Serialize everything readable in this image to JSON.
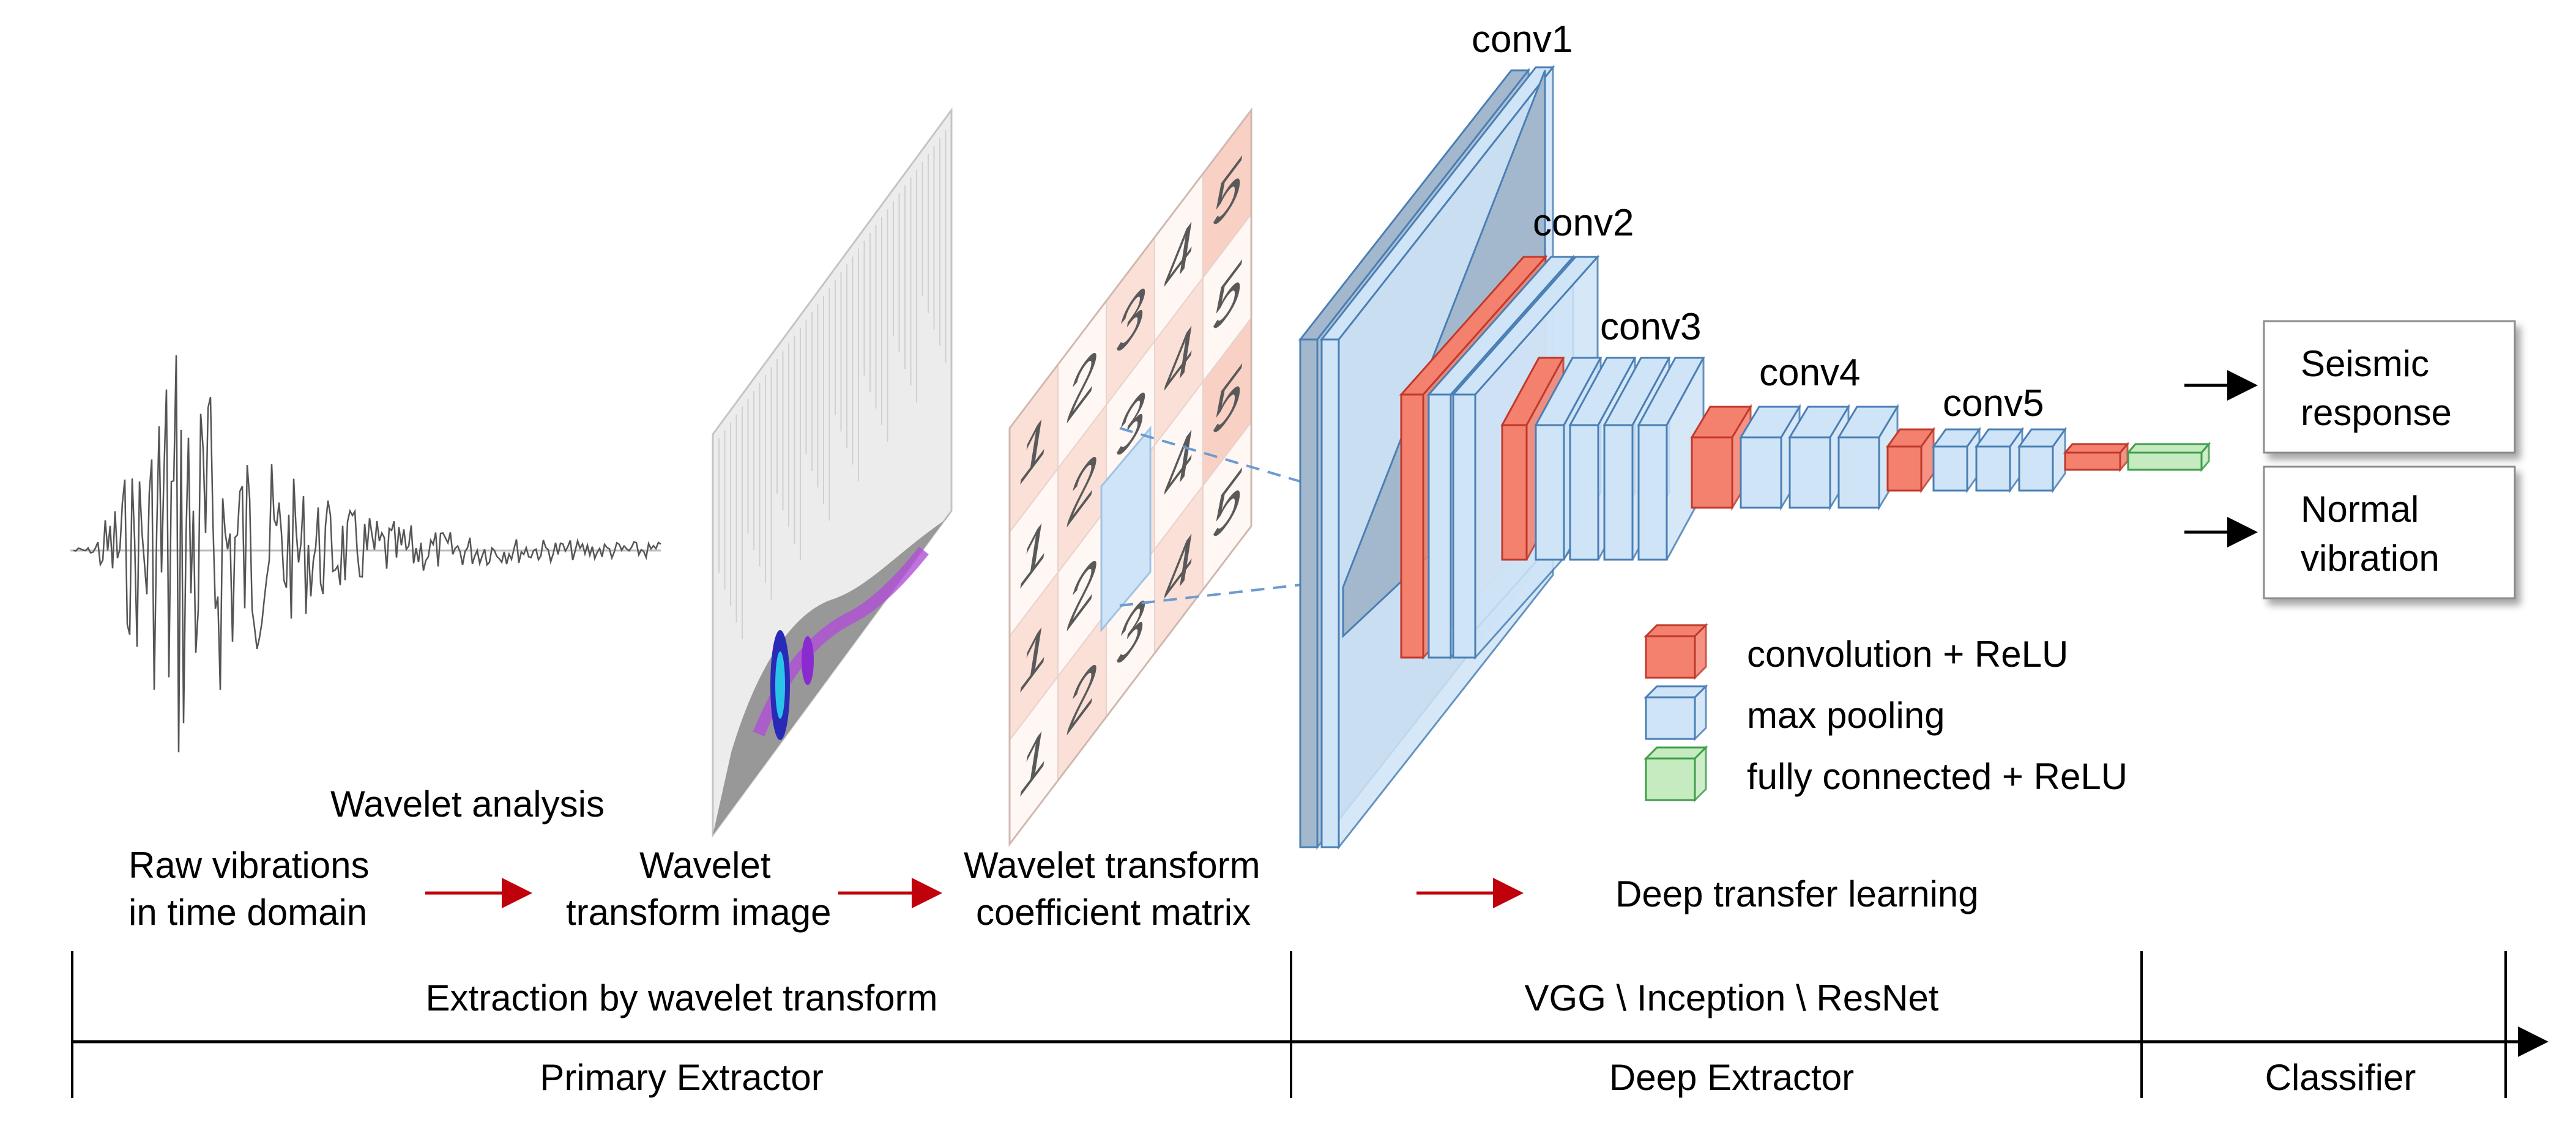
{
  "stages": {
    "raw": [
      "Raw vibrations",
      "in time domain"
    ],
    "wavelet_analysis": "Wavelet analysis",
    "wt_image": [
      "Wavelet",
      "transform image"
    ],
    "wt_matrix": [
      "Wavelet transform",
      "coefficient matrix"
    ],
    "deep_transfer": "Deep transfer learning"
  },
  "layers": [
    "conv1",
    "conv2",
    "conv3",
    "conv4",
    "conv5"
  ],
  "outputs": [
    [
      "Seismic",
      "response"
    ],
    [
      "Normal",
      "vibration"
    ]
  ],
  "legend": [
    {
      "label": "convolution + ReLU",
      "color": "#f4806e",
      "edge": "#c0392b"
    },
    {
      "label": "max pooling",
      "color": "#cfe4f7",
      "edge": "#4a7fb5"
    },
    {
      "label": "fully connected + ReLU",
      "color": "#c6ebc0",
      "edge": "#3e9e4a"
    }
  ],
  "matrix_numbers": [
    [
      "1",
      "2",
      "3",
      "4",
      "5"
    ],
    [
      "1",
      "2",
      "3",
      "4",
      "5"
    ],
    [
      "1",
      "2",
      "3",
      "4",
      "5"
    ],
    [
      "1",
      "2",
      "3",
      "4",
      "5"
    ]
  ],
  "bottom": {
    "row1": [
      "Extraction by wavelet transform",
      "VGG \\ Inception \\ ResNet"
    ],
    "row2": [
      "Primary Extractor",
      "Deep Extractor",
      "Classifier"
    ]
  },
  "colors": {
    "arrow_red": "#c0000a",
    "conv_red": "#f4806e",
    "pool_blue": "#cfe4f7",
    "fc_green": "#c6ebc0",
    "big_block": "#a3b8cc"
  }
}
